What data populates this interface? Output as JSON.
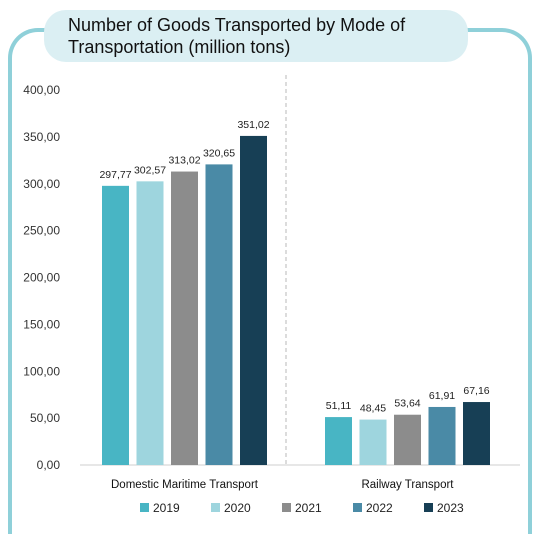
{
  "chart_data": {
    "type": "bar",
    "title": "Number of Goods Transported by Mode of Transportation (million tons)",
    "categories": [
      "Domestic Maritime Transport",
      "Railway Transport"
    ],
    "series": [
      {
        "name": "2019",
        "color": "#48b5c4",
        "values": [
          297.77,
          51.11
        ],
        "labels": [
          "297,77",
          "51,11"
        ]
      },
      {
        "name": "2020",
        "color": "#9ed5de",
        "values": [
          302.57,
          48.45
        ],
        "labels": [
          "302,57",
          "48,45"
        ]
      },
      {
        "name": "2021",
        "color": "#8c8c8c",
        "values": [
          313.02,
          53.64
        ],
        "labels": [
          "313,02",
          "53,64"
        ]
      },
      {
        "name": "2022",
        "color": "#4a8aa6",
        "values": [
          320.65,
          61.91
        ],
        "labels": [
          "320,65",
          "61,91"
        ]
      },
      {
        "name": "2023",
        "color": "#173f55",
        "values": [
          351.02,
          67.16
        ],
        "labels": [
          "351,02",
          "67,16"
        ]
      }
    ],
    "ylim": [
      0,
      400
    ],
    "yticks": [
      "0,00",
      "50,00",
      "100,00",
      "150,00",
      "200,00",
      "250,00",
      "300,00",
      "350,00",
      "400,00"
    ],
    "grid": false,
    "legend": "bottom",
    "xlabel": "",
    "ylabel": ""
  }
}
